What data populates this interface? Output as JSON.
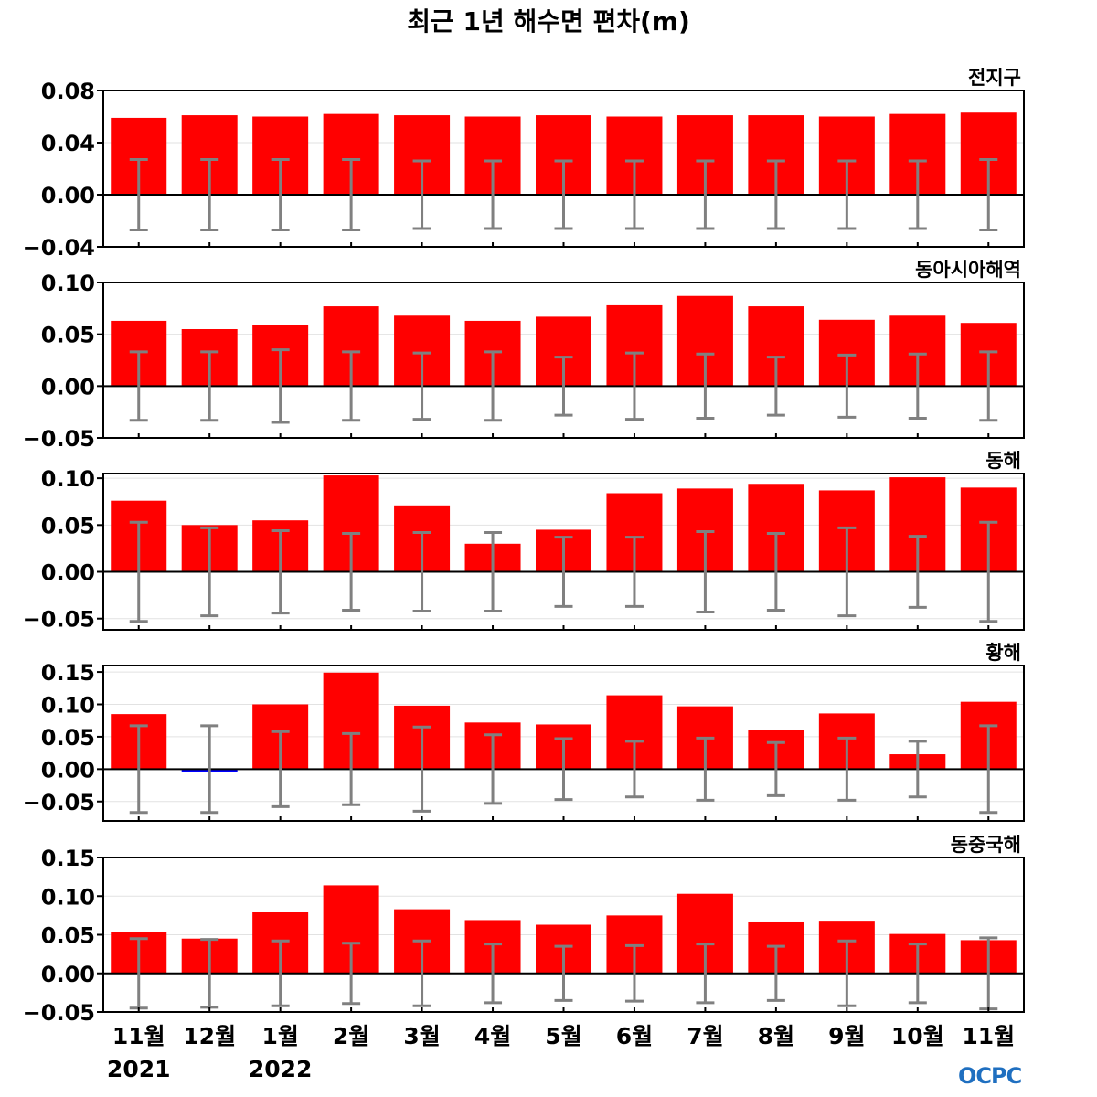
{
  "title": "최근 1년 해수면 편차(m)",
  "logo_text": "OCPC",
  "colors": {
    "positive": "#ff0000",
    "negative": "#0000ff",
    "errorbar": "#808080",
    "zero_line": "#000000"
  },
  "chart_data": [
    {
      "type": "bar",
      "title": "전지구",
      "categories": [
        "11월",
        "12월",
        "1월",
        "2월",
        "3월",
        "4월",
        "5월",
        "6월",
        "7월",
        "8월",
        "9월",
        "10월",
        "11월"
      ],
      "year_labels": [
        "2021",
        "",
        "2022",
        "",
        "",
        "",
        "",
        "",
        "",
        "",
        "",
        "",
        ""
      ],
      "values": [
        0.059,
        0.061,
        0.06,
        0.062,
        0.061,
        0.06,
        0.061,
        0.06,
        0.061,
        0.061,
        0.06,
        0.062,
        0.063
      ],
      "errors": [
        0.027,
        0.027,
        0.027,
        0.027,
        0.026,
        0.026,
        0.026,
        0.026,
        0.026,
        0.026,
        0.026,
        0.026,
        0.027
      ],
      "ylim": [
        -0.04,
        0.08
      ],
      "yticks": [
        "0.08",
        "0.04",
        "0.00",
        "−0.04"
      ],
      "ytick_values": [
        0.08,
        0.04,
        0.0,
        -0.04
      ]
    },
    {
      "type": "bar",
      "title": "동아시아해역",
      "categories": [
        "11월",
        "12월",
        "1월",
        "2월",
        "3월",
        "4월",
        "5월",
        "6월",
        "7월",
        "8월",
        "9월",
        "10월",
        "11월"
      ],
      "values": [
        0.063,
        0.055,
        0.059,
        0.077,
        0.068,
        0.063,
        0.067,
        0.078,
        0.087,
        0.077,
        0.064,
        0.068,
        0.061
      ],
      "errors": [
        0.033,
        0.033,
        0.035,
        0.033,
        0.032,
        0.033,
        0.028,
        0.032,
        0.031,
        0.028,
        0.03,
        0.031,
        0.033
      ],
      "ylim": [
        -0.05,
        0.1
      ],
      "yticks": [
        "0.10",
        "0.05",
        "0.00",
        "−0.05"
      ],
      "ytick_values": [
        0.1,
        0.05,
        0.0,
        -0.05
      ]
    },
    {
      "type": "bar",
      "title": "동해",
      "categories": [
        "11월",
        "12월",
        "1월",
        "2월",
        "3월",
        "4월",
        "5월",
        "6월",
        "7월",
        "8월",
        "9월",
        "10월",
        "11월"
      ],
      "values": [
        0.076,
        0.05,
        0.055,
        0.103,
        0.071,
        0.03,
        0.045,
        0.084,
        0.089,
        0.094,
        0.087,
        0.101,
        0.09
      ],
      "errors": [
        0.053,
        0.047,
        0.044,
        0.041,
        0.042,
        0.042,
        0.037,
        0.037,
        0.043,
        0.041,
        0.047,
        0.038,
        0.053
      ],
      "ylim": [
        -0.062,
        0.105
      ],
      "yticks": [
        "0.10",
        "0.05",
        "0.00",
        "−0.05"
      ],
      "ytick_values": [
        0.1,
        0.05,
        0.0,
        -0.05
      ]
    },
    {
      "type": "bar",
      "title": "황해",
      "categories": [
        "11월",
        "12월",
        "1월",
        "2월",
        "3월",
        "4월",
        "5월",
        "6월",
        "7월",
        "8월",
        "9월",
        "10월",
        "11월"
      ],
      "values": [
        0.085,
        -0.005,
        0.1,
        0.149,
        0.098,
        0.072,
        0.069,
        0.114,
        0.097,
        0.061,
        0.086,
        0.023,
        0.104
      ],
      "errors": [
        0.067,
        0.067,
        0.058,
        0.055,
        0.065,
        0.053,
        0.047,
        0.043,
        0.048,
        0.041,
        0.048,
        0.043,
        0.067
      ],
      "ylim": [
        -0.08,
        0.16
      ],
      "yticks": [
        "0.15",
        "0.10",
        "0.05",
        "0.00",
        "−0.05"
      ],
      "ytick_values": [
        0.15,
        0.1,
        0.05,
        0.0,
        -0.05
      ]
    },
    {
      "type": "bar",
      "title": "동중국해",
      "categories": [
        "11월",
        "12월",
        "1월",
        "2월",
        "3월",
        "4월",
        "5월",
        "6월",
        "7월",
        "8월",
        "9월",
        "10월",
        "11월"
      ],
      "values": [
        0.054,
        0.045,
        0.079,
        0.114,
        0.083,
        0.069,
        0.063,
        0.075,
        0.103,
        0.066,
        0.067,
        0.051,
        0.043
      ],
      "errors": [
        0.045,
        0.044,
        0.042,
        0.039,
        0.042,
        0.038,
        0.035,
        0.036,
        0.038,
        0.035,
        0.042,
        0.038,
        0.046
      ],
      "ylim": [
        -0.05,
        0.15
      ],
      "yticks": [
        "0.15",
        "0.10",
        "0.05",
        "0.00",
        "−0.05"
      ],
      "ytick_values": [
        0.15,
        0.1,
        0.05,
        0.0,
        -0.05
      ]
    }
  ]
}
